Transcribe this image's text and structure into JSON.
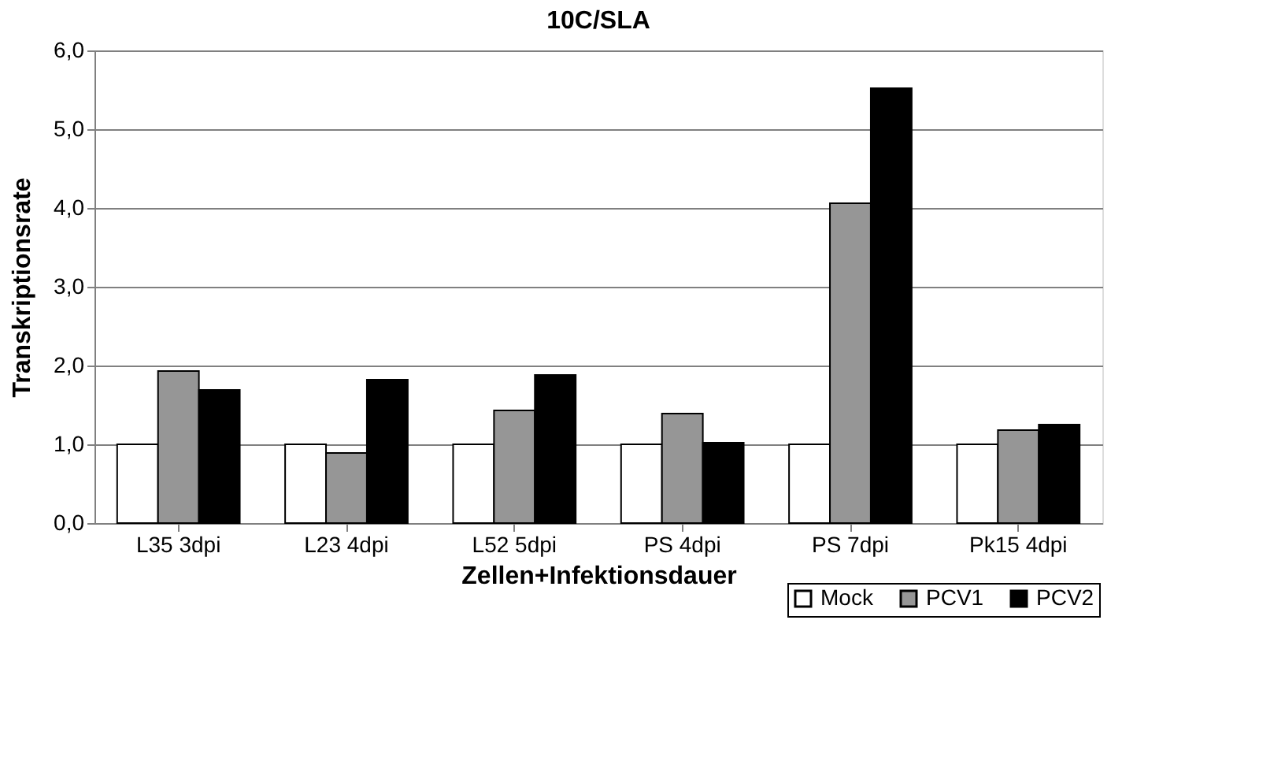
{
  "chart_data": {
    "type": "bar",
    "title": "10C/SLA",
    "xlabel": "Zellen+Infektionsdauer",
    "ylabel": "Transkriptionsrate",
    "categories": [
      "L35 3dpi",
      "L23 4dpi",
      "L52 5dpi",
      "PS 4dpi",
      "PS 7dpi",
      "Pk15 4dpi"
    ],
    "series": [
      {
        "name": "Mock",
        "color": "#ffffff",
        "values": [
          1.0,
          1.0,
          1.0,
          1.0,
          1.0,
          1.0
        ]
      },
      {
        "name": "PCV1",
        "color": "#969696",
        "values": [
          1.93,
          0.89,
          1.43,
          1.39,
          4.06,
          1.18
        ]
      },
      {
        "name": "PCV2",
        "color": "#000000",
        "values": [
          1.69,
          1.82,
          1.88,
          1.02,
          5.52,
          1.25
        ]
      }
    ],
    "ylim": [
      0,
      6
    ],
    "yticks": [
      {
        "value": 0,
        "label": "0,0"
      },
      {
        "value": 1,
        "label": "1,0"
      },
      {
        "value": 2,
        "label": "2,0"
      },
      {
        "value": 3,
        "label": "3,0"
      },
      {
        "value": 4,
        "label": "4,0"
      },
      {
        "value": 5,
        "label": "5,0"
      },
      {
        "value": 6,
        "label": "6,0"
      }
    ],
    "grid": "y",
    "legend": "bottom right"
  }
}
